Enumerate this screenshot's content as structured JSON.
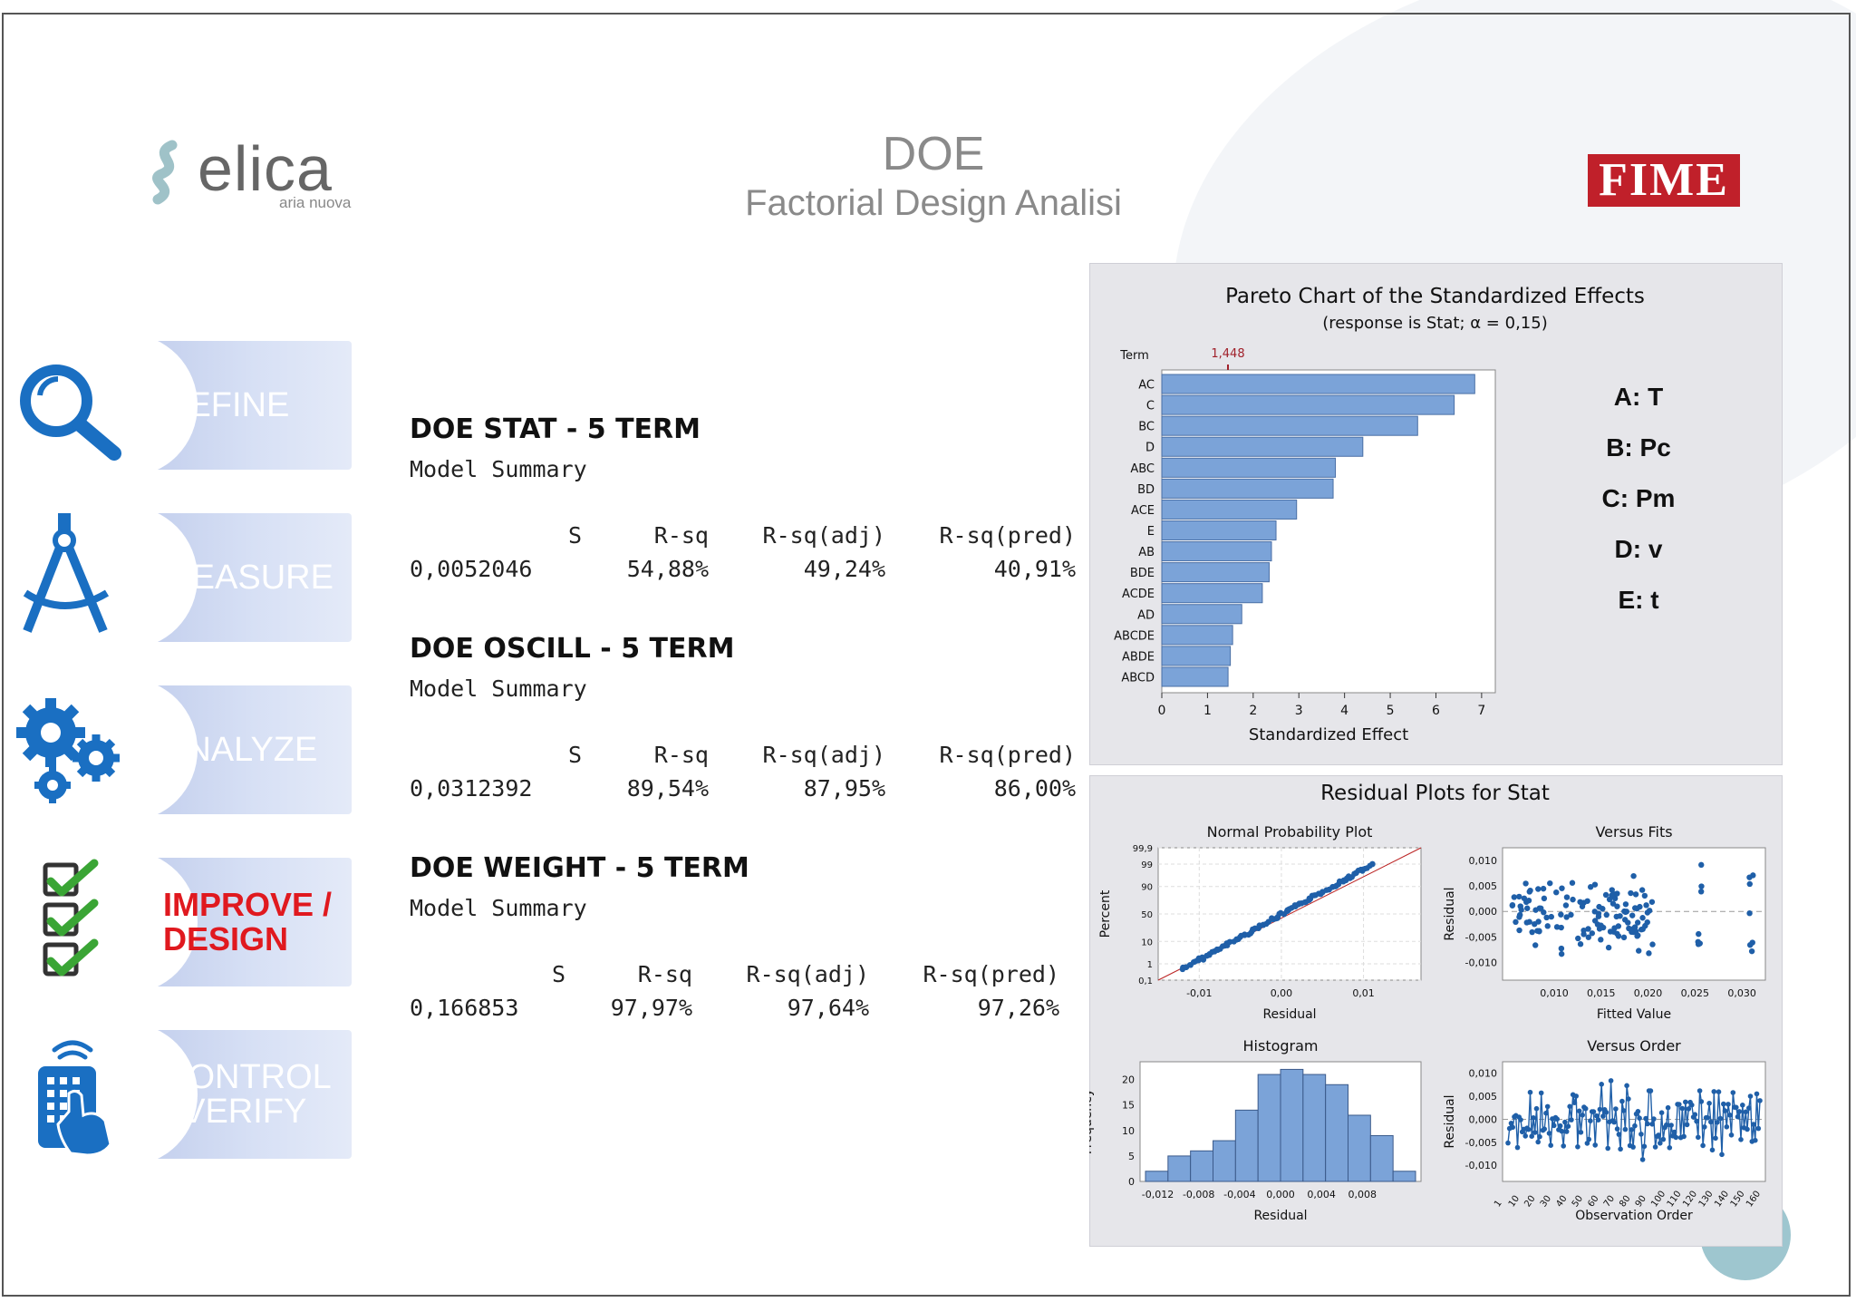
{
  "header": {
    "title": "DOE",
    "subtitle": "Factorial Design Analisi",
    "brand_left": "elica",
    "brand_left_tagline": "aria nuova",
    "brand_right": "FIME",
    "brand_right_color": "#c0202a"
  },
  "phases": [
    {
      "label_line1": "DEFINE",
      "label_line2": "",
      "icon": "magnifier-icon",
      "active": false
    },
    {
      "label_line1": "MEASURE",
      "label_line2": "",
      "icon": "compass-icon",
      "active": false
    },
    {
      "label_line1": "ANALYZE",
      "label_line2": "",
      "icon": "gears-icon",
      "active": false
    },
    {
      "label_line1": "IMPROVE /",
      "label_line2": "DESIGN",
      "icon": "checklist-icon",
      "active": true
    },
    {
      "label_line1": "CONTROL",
      "label_line2": "/ VERIFY",
      "icon": "remote-control-icon",
      "active": false
    }
  ],
  "model_summaries": [
    {
      "title": "DOE STAT - 5 TERM",
      "subtitle": "Model Summary",
      "headers": [
        "S",
        "R-sq",
        "R-sq(adj)",
        "R-sq(pred)"
      ],
      "values": [
        "0,0052046",
        "54,88%",
        "49,24%",
        "40,91%"
      ]
    },
    {
      "title": "DOE OSCILL - 5 TERM",
      "subtitle": "Model Summary",
      "headers": [
        "S",
        "R-sq",
        "R-sq(adj)",
        "R-sq(pred)"
      ],
      "values": [
        "0,0312392",
        "89,54%",
        "87,95%",
        "86,00%"
      ]
    },
    {
      "title": "DOE WEIGHT - 5 TERM",
      "subtitle": "Model Summary",
      "headers": [
        "S",
        "R-sq",
        "R-sq(adj)",
        "R-sq(pred)"
      ],
      "values": [
        "0,166853",
        "97,97%",
        "97,64%",
        "97,26%"
      ]
    }
  ],
  "factor_legend": [
    "A: T",
    "B: Pc",
    "C: Pm",
    "D: v",
    "E: t"
  ],
  "chart_data": [
    {
      "type": "bar",
      "orientation": "horizontal",
      "title": "Pareto Chart of the Standardized Effects",
      "subtitle": "(response is Stat; α = 0,15)",
      "ylabel": "Term",
      "xlabel": "Standardized Effect",
      "reference_line": {
        "value": 1.448,
        "label": "1,448",
        "color": "#a0202a"
      },
      "categories": [
        "AC",
        "C",
        "BC",
        "D",
        "ABC",
        "BD",
        "ACE",
        "E",
        "AB",
        "BDE",
        "ACDE",
        "AD",
        "ABCDE",
        "ABDE",
        "ABCD"
      ],
      "values": [
        6.85,
        6.4,
        5.6,
        4.4,
        3.8,
        3.75,
        2.95,
        2.5,
        2.4,
        2.35,
        2.2,
        1.75,
        1.55,
        1.5,
        1.45
      ],
      "xlim": [
        0,
        7.3
      ],
      "xticks": [
        "0",
        "1",
        "2",
        "3",
        "4",
        "5",
        "6",
        "7"
      ],
      "bar_color": "#7ba3d8"
    },
    {
      "type": "scatter",
      "title": "Residual Plots for Stat",
      "subtitle": "Normal Probability Plot",
      "xlabel": "Residual",
      "ylabel": "Percent",
      "xticks": [
        "-0,01",
        "0,00",
        "0,01"
      ],
      "yticks": [
        "0,1",
        "1",
        "10",
        "50",
        "90",
        "99",
        "99,9"
      ],
      "xlim": [
        -0.015,
        0.017
      ]
    },
    {
      "type": "scatter",
      "title": "Versus Fits",
      "xlabel": "Fitted Value",
      "ylabel": "Residual",
      "xticks": [
        "0,010",
        "0,015",
        "0,020",
        "0,025",
        "0,030"
      ],
      "yticks": [
        "0,010",
        "0,005",
        "0,000",
        "-0,005",
        "-0,010"
      ],
      "xlim": [
        0.0045,
        0.0325
      ],
      "ylim": [
        -0.0135,
        0.0125
      ]
    },
    {
      "type": "bar",
      "title": "Histogram",
      "xlabel": "Residual",
      "ylabel": "Frequency",
      "bin_edges_start": -0.0132,
      "bin_width": 0.0022,
      "values": [
        2,
        5,
        6,
        8,
        14,
        21,
        22,
        21,
        19,
        13,
        9,
        2
      ],
      "xticks": [
        "-0,012",
        "-0,008",
        "-0,004",
        "0,000",
        "0,004",
        "0,008"
      ],
      "yticks": [
        "0",
        "5",
        "10",
        "15",
        "20"
      ],
      "ylim": [
        0,
        23.5
      ]
    },
    {
      "type": "line",
      "title": "Versus Order",
      "xlabel": "Observation Order",
      "ylabel": "Residual",
      "xticks": [
        "1",
        "10",
        "20",
        "30",
        "40",
        "50",
        "60",
        "70",
        "80",
        "90",
        "100",
        "110",
        "120",
        "130",
        "140",
        "150",
        "160"
      ],
      "yticks": [
        "0,010",
        "0,005",
        "0,000",
        "-0,005",
        "-0,010"
      ],
      "ylim": [
        -0.0135,
        0.0125
      ]
    }
  ]
}
